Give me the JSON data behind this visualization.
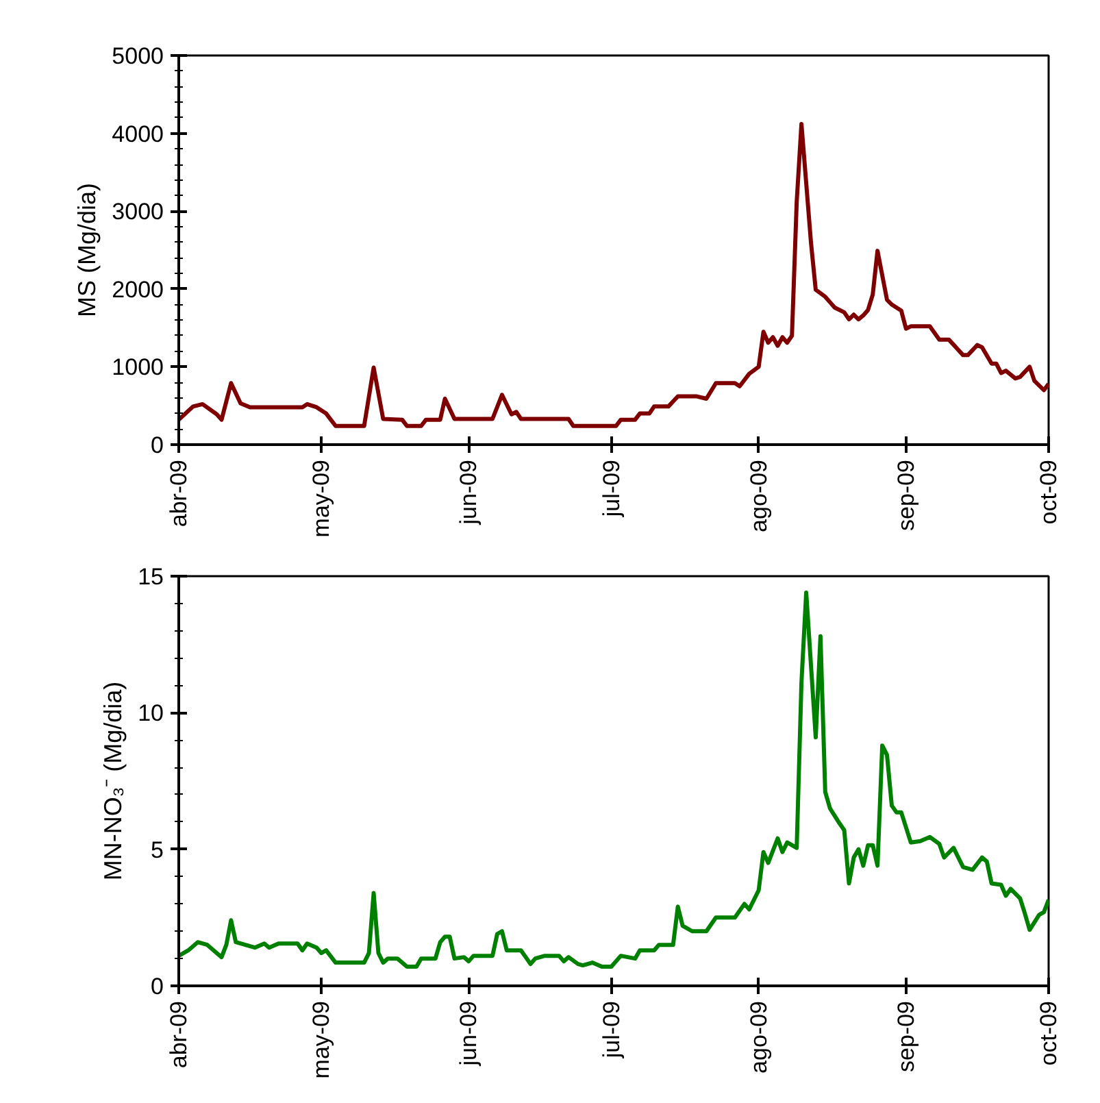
{
  "chart_data": [
    {
      "type": "line",
      "ylabel": "MS (Mg/dia)",
      "grid": false,
      "xlim": [
        "2009-04-01",
        "2009-10-01"
      ],
      "xticks": [
        {
          "value": "2009-04-01",
          "label": "abr-09"
        },
        {
          "value": "2009-05-01",
          "label": "may-09"
        },
        {
          "value": "2009-06-01",
          "label": "jun-09"
        },
        {
          "value": "2009-07-01",
          "label": "jul-09"
        },
        {
          "value": "2009-08-01",
          "label": "ago-09"
        },
        {
          "value": "2009-09-01",
          "label": "sep-09"
        },
        {
          "value": "2009-10-01",
          "label": "oct-09"
        }
      ],
      "ylim": [
        0,
        5000
      ],
      "yticks": [
        0,
        1000,
        2000,
        3000,
        4000,
        5000
      ],
      "series": [
        {
          "color": "#7f0000",
          "x": [
            "2009-04-01",
            "2009-04-04",
            "2009-04-06",
            "2009-04-09",
            "2009-04-10",
            "2009-04-12",
            "2009-04-14",
            "2009-04-16",
            "2009-04-27",
            "2009-04-28",
            "2009-04-30",
            "2009-05-02",
            "2009-05-04",
            "2009-05-10",
            "2009-05-12",
            "2009-05-14",
            "2009-05-18",
            "2009-05-19",
            "2009-05-22",
            "2009-05-23",
            "2009-05-26",
            "2009-05-27",
            "2009-05-29",
            "2009-06-06",
            "2009-06-08",
            "2009-06-10",
            "2009-06-11",
            "2009-06-12",
            "2009-06-22",
            "2009-06-23",
            "2009-07-02",
            "2009-07-03",
            "2009-07-06",
            "2009-07-07",
            "2009-07-09",
            "2009-07-10",
            "2009-07-13",
            "2009-07-15",
            "2009-07-19",
            "2009-07-21",
            "2009-07-23",
            "2009-07-27",
            "2009-07-28",
            "2009-07-29",
            "2009-07-30",
            "2009-08-01",
            "2009-08-02",
            "2009-08-03",
            "2009-08-04",
            "2009-08-05",
            "2009-08-06",
            "2009-08-07",
            "2009-08-08",
            "2009-08-09",
            "2009-08-10",
            "2009-08-12",
            "2009-08-13",
            "2009-08-15",
            "2009-08-16",
            "2009-08-17",
            "2009-08-19",
            "2009-08-20",
            "2009-08-21",
            "2009-08-22",
            "2009-08-23",
            "2009-08-24",
            "2009-08-25",
            "2009-08-26",
            "2009-08-28",
            "2009-08-29",
            "2009-08-31",
            "2009-09-01",
            "2009-09-02",
            "2009-09-06",
            "2009-09-08",
            "2009-09-10",
            "2009-09-13",
            "2009-09-14",
            "2009-09-16",
            "2009-09-17",
            "2009-09-19",
            "2009-09-20",
            "2009-09-21",
            "2009-09-22",
            "2009-09-24",
            "2009-09-25",
            "2009-09-27",
            "2009-09-28",
            "2009-09-30",
            "2009-10-01"
          ],
          "values": [
            320,
            490,
            520,
            390,
            320,
            790,
            530,
            480,
            480,
            520,
            480,
            400,
            240,
            240,
            990,
            330,
            320,
            240,
            240,
            320,
            320,
            590,
            330,
            330,
            640,
            390,
            420,
            330,
            330,
            240,
            240,
            320,
            320,
            400,
            400,
            490,
            490,
            620,
            620,
            590,
            790,
            790,
            750,
            830,
            910,
            1000,
            1450,
            1310,
            1380,
            1270,
            1380,
            1310,
            1400,
            3120,
            4120,
            2600,
            1990,
            1900,
            1830,
            1760,
            1700,
            1610,
            1670,
            1610,
            1660,
            1730,
            1930,
            2490,
            1860,
            1800,
            1720,
            1490,
            1520,
            1520,
            1350,
            1350,
            1150,
            1150,
            1280,
            1250,
            1040,
            1040,
            920,
            950,
            850,
            870,
            1000,
            820,
            700,
            780
          ]
        }
      ]
    },
    {
      "type": "line",
      "ylabel": "MN-NO₃⁻ (Mg/dia)",
      "grid": false,
      "xlim": [
        "2009-04-01",
        "2009-10-01"
      ],
      "xticks": [
        {
          "value": "2009-04-01",
          "label": "abr-09"
        },
        {
          "value": "2009-05-01",
          "label": "may-09"
        },
        {
          "value": "2009-06-01",
          "label": "jun-09"
        },
        {
          "value": "2009-07-01",
          "label": "jul-09"
        },
        {
          "value": "2009-08-01",
          "label": "ago-09"
        },
        {
          "value": "2009-09-01",
          "label": "sep-09"
        },
        {
          "value": "2009-10-01",
          "label": "oct-09"
        }
      ],
      "ylim": [
        0,
        15
      ],
      "yticks": [
        0,
        5,
        10,
        15
      ],
      "series": [
        {
          "color": "#008000",
          "x": [
            "2009-04-01",
            "2009-04-03",
            "2009-04-05",
            "2009-04-07",
            "2009-04-09",
            "2009-04-10",
            "2009-04-11",
            "2009-04-12",
            "2009-04-13",
            "2009-04-15",
            "2009-04-17",
            "2009-04-19",
            "2009-04-20",
            "2009-04-22",
            "2009-04-26",
            "2009-04-27",
            "2009-04-28",
            "2009-04-30",
            "2009-05-01",
            "2009-05-02",
            "2009-05-04",
            "2009-05-10",
            "2009-05-11",
            "2009-05-12",
            "2009-05-13",
            "2009-05-14",
            "2009-05-15",
            "2009-05-17",
            "2009-05-19",
            "2009-05-21",
            "2009-05-22",
            "2009-05-25",
            "2009-05-26",
            "2009-05-27",
            "2009-05-28",
            "2009-05-29",
            "2009-05-31",
            "2009-06-01",
            "2009-06-02",
            "2009-06-06",
            "2009-06-07",
            "2009-06-08",
            "2009-06-09",
            "2009-06-12",
            "2009-06-14",
            "2009-06-15",
            "2009-06-17",
            "2009-06-20",
            "2009-06-21",
            "2009-06-22",
            "2009-06-24",
            "2009-06-25",
            "2009-06-27",
            "2009-06-29",
            "2009-07-01",
            "2009-07-03",
            "2009-07-06",
            "2009-07-07",
            "2009-07-10",
            "2009-07-11",
            "2009-07-14",
            "2009-07-15",
            "2009-07-16",
            "2009-07-18",
            "2009-07-21",
            "2009-07-23",
            "2009-07-27",
            "2009-07-29",
            "2009-07-30",
            "2009-08-01",
            "2009-08-02",
            "2009-08-03",
            "2009-08-05",
            "2009-08-06",
            "2009-08-07",
            "2009-08-09",
            "2009-08-10",
            "2009-08-11",
            "2009-08-13",
            "2009-08-14",
            "2009-08-15",
            "2009-08-16",
            "2009-08-18",
            "2009-08-19",
            "2009-08-20",
            "2009-08-21",
            "2009-08-22",
            "2009-08-23",
            "2009-08-24",
            "2009-08-25",
            "2009-08-26",
            "2009-08-27",
            "2009-08-28",
            "2009-08-29",
            "2009-08-30",
            "2009-08-31",
            "2009-09-02",
            "2009-09-04",
            "2009-09-06",
            "2009-09-08",
            "2009-09-09",
            "2009-09-11",
            "2009-09-13",
            "2009-09-15",
            "2009-09-17",
            "2009-09-18",
            "2009-09-19",
            "2009-09-21",
            "2009-09-22",
            "2009-09-23",
            "2009-09-25",
            "2009-09-26",
            "2009-09-27",
            "2009-09-29",
            "2009-09-30",
            "2009-10-01"
          ],
          "values": [
            1.1,
            1.3,
            1.6,
            1.5,
            1.2,
            1.05,
            1.5,
            2.4,
            1.6,
            1.5,
            1.4,
            1.55,
            1.4,
            1.55,
            1.55,
            1.3,
            1.55,
            1.4,
            1.2,
            1.3,
            0.85,
            0.85,
            1.2,
            3.4,
            1.2,
            0.85,
            1.0,
            1.0,
            0.7,
            0.7,
            1.0,
            1.0,
            1.6,
            1.8,
            1.8,
            1.0,
            1.05,
            0.9,
            1.1,
            1.1,
            1.9,
            2.0,
            1.3,
            1.3,
            0.8,
            1.0,
            1.1,
            1.1,
            0.9,
            1.05,
            0.8,
            0.75,
            0.85,
            0.7,
            0.7,
            1.1,
            1.0,
            1.3,
            1.3,
            1.5,
            1.5,
            2.9,
            2.2,
            2.0,
            2.0,
            2.5,
            2.5,
            3.0,
            2.8,
            3.5,
            4.9,
            4.5,
            5.4,
            4.9,
            5.25,
            5.05,
            11.1,
            14.4,
            9.1,
            12.8,
            7.1,
            6.5,
            5.95,
            5.7,
            3.75,
            4.7,
            5.0,
            4.4,
            5.15,
            5.15,
            4.4,
            8.8,
            8.45,
            6.6,
            6.35,
            6.35,
            5.25,
            5.3,
            5.45,
            5.2,
            4.7,
            5.05,
            4.35,
            4.25,
            4.7,
            4.55,
            3.75,
            3.7,
            3.3,
            3.55,
            3.2,
            2.65,
            2.05,
            2.6,
            2.7,
            3.15
          ]
        }
      ]
    }
  ]
}
